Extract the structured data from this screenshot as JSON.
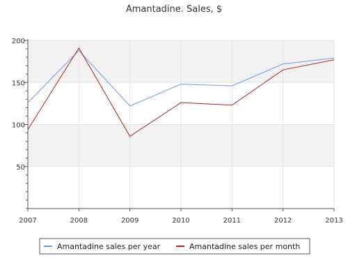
{
  "chart_data": {
    "type": "line",
    "title": "Amantadine. Sales, $",
    "x": [
      "2007",
      "2008",
      "2009",
      "2010",
      "2011",
      "2012",
      "2013"
    ],
    "series": [
      {
        "name": "Amantadine sales per year",
        "color": "#6a9ae8",
        "values": [
          126,
          188,
          122,
          148,
          146,
          172,
          179
        ]
      },
      {
        "name": "Amantadine sales per month",
        "color": "#b22222",
        "values": [
          94,
          191,
          86,
          126,
          123,
          165,
          177
        ]
      }
    ],
    "yticks": [
      50,
      100,
      150,
      200
    ],
    "ylim": [
      0,
      200
    ],
    "grid": true,
    "legend_position": "bottom"
  }
}
